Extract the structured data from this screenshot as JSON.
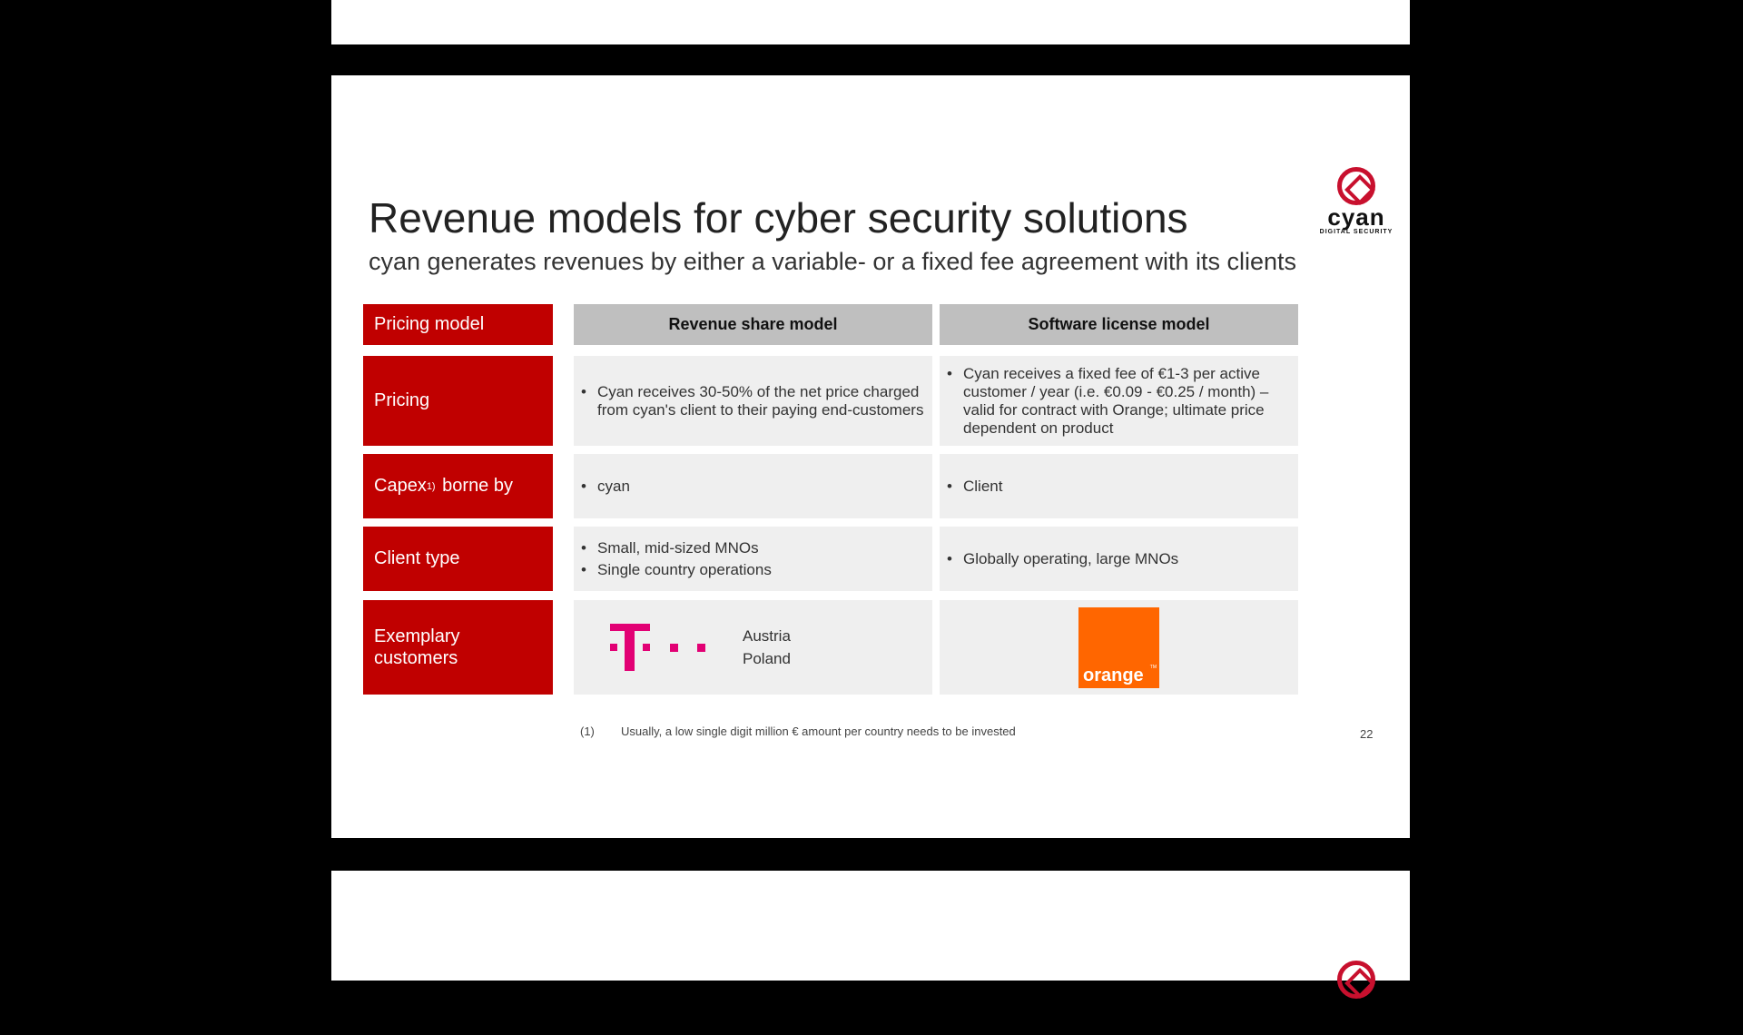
{
  "title": "Revenue models for cyber security solutions",
  "subtitle": "cyan generates revenues by either a variable- or a fixed fee agreement with its clients",
  "logo": {
    "word": "cyan",
    "tag": "DIGITAL SECURITY"
  },
  "table": {
    "header": {
      "label": "Pricing model",
      "col1": "Revenue share model",
      "col2": "Software license model"
    },
    "rows": [
      {
        "label": "Pricing",
        "col1": [
          "Cyan receives 30-50% of the net price charged from cyan's client to their paying end-customers"
        ],
        "col2": [
          "Cyan receives a fixed fee of €1-3 per active customer / year (i.e. €0.09 - €0.25 / month) – valid for contract with Orange; ultimate price dependent on product"
        ]
      },
      {
        "label": "Capex",
        "label_sup": "1)",
        "label_suffix": "borne by",
        "col1": [
          "cyan"
        ],
        "col2": [
          "Client"
        ]
      },
      {
        "label": "Client type",
        "col1": [
          "Small, mid-sized MNOs",
          "Single country operations"
        ],
        "col2": [
          "Globally operating, large MNOs"
        ]
      },
      {
        "label": "Exemplary customers",
        "col1_countries": [
          "Austria",
          "Poland"
        ],
        "col1_logo": "T · ·",
        "col2_logo": "orange",
        "col2_logo_tm": "TM"
      }
    ]
  },
  "footnote": {
    "marker": "(1)",
    "text": "Usually, a low single digit million € amount per country needs to be invested"
  },
  "page_number": "22",
  "colors": {
    "accent": "#c00000",
    "header_gray": "#bfbfbf",
    "cell_gray": "#efefef",
    "telekom": "#e20074",
    "orange": "#ff6600"
  }
}
